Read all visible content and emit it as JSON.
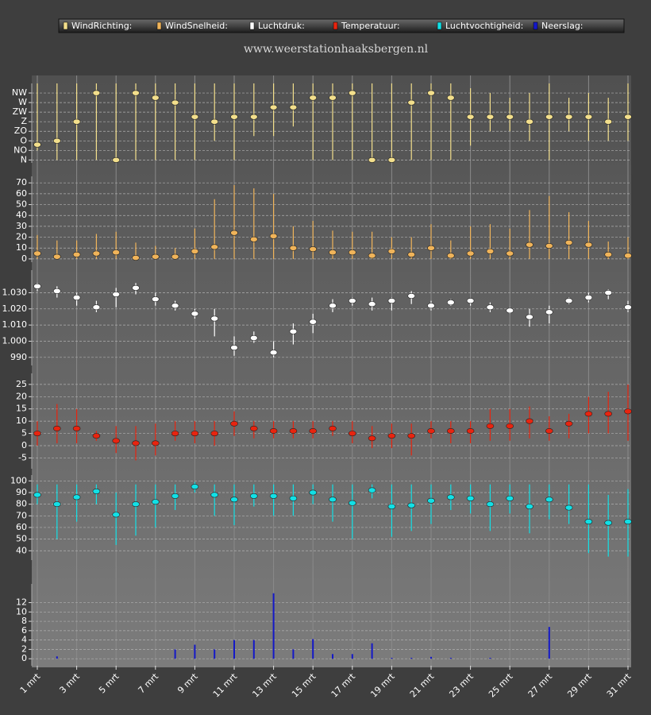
{
  "title": "www.weerstationhaaksbergen.nl",
  "chart_data": [
    {
      "type": "errorbar",
      "ylim": [
        -0.3,
        8
      ],
      "yticks": [
        {
          "value": 0,
          "label": "N"
        },
        {
          "value": 1,
          "label": "NO"
        },
        {
          "value": 2,
          "label": "O"
        },
        {
          "value": 3,
          "label": "ZO"
        },
        {
          "value": 4,
          "label": "Z"
        },
        {
          "value": 5,
          "label": "ZW"
        },
        {
          "value": 6,
          "label": "W"
        },
        {
          "value": 7,
          "label": "NW"
        }
      ],
      "series": [
        {
          "name": "WindRichting:",
          "color": "#f3df8c",
          "values": [
            1.6,
            2,
            4,
            7,
            0,
            7,
            6.5,
            6,
            4.5,
            4,
            4.5,
            4.5,
            5.5,
            5.5,
            6.5,
            6.5,
            7,
            0,
            0,
            6,
            7,
            6.5,
            4.5,
            4.5,
            4.5,
            4,
            4.5,
            4.5,
            4.5,
            4,
            4.5
          ],
          "low": [
            1,
            0,
            0,
            0,
            0,
            0,
            0,
            0,
            0,
            2,
            0,
            2.5,
            2.5,
            3.5,
            0,
            0,
            0,
            0,
            0,
            0,
            0,
            0,
            1.5,
            3,
            3,
            2,
            0,
            3,
            2,
            2,
            2
          ],
          "high": [
            8,
            8,
            8,
            8,
            8,
            8,
            8,
            8,
            8,
            8,
            8,
            8,
            8,
            8,
            8,
            8,
            8,
            8,
            8,
            8,
            8,
            8,
            7.5,
            7,
            6.5,
            7,
            8,
            6.5,
            7,
            6.5,
            8
          ]
        }
      ]
    },
    {
      "type": "errorbar",
      "ylim": [
        -3,
        76
      ],
      "yticks": [
        0,
        10,
        20,
        30,
        40,
        50,
        60,
        70
      ],
      "series": [
        {
          "name": "WindSnelheid:",
          "color": "#f0b45a",
          "values": [
            5,
            2,
            4,
            5,
            6,
            1,
            2,
            2,
            7,
            11,
            24,
            18,
            21,
            10,
            9,
            6,
            6,
            3,
            7,
            4,
            10,
            3,
            5,
            7,
            5,
            13,
            12,
            15,
            13,
            4,
            3
          ],
          "low": [
            0,
            0,
            0,
            0,
            0,
            0,
            0,
            0,
            0,
            0,
            0,
            0,
            0,
            0,
            0,
            0,
            0,
            0,
            0,
            0,
            0,
            0,
            0,
            0,
            0,
            0,
            0,
            0,
            0,
            0,
            0
          ],
          "high": [
            22,
            17,
            17,
            23,
            25,
            15,
            12,
            10,
            28,
            55,
            68,
            65,
            60,
            30,
            35,
            26,
            25,
            25,
            20,
            20,
            32,
            17,
            30,
            32,
            28,
            45,
            58,
            43,
            35,
            16,
            20
          ]
        }
      ]
    },
    {
      "type": "errorbar",
      "ylim": [
        985,
        1044
      ],
      "yticks": [
        990,
        {
          "value": 1000,
          "label": "1.000"
        },
        {
          "value": 1010,
          "label": "1.010"
        },
        {
          "value": 1020,
          "label": "1.020"
        },
        {
          "value": 1030,
          "label": "1.030"
        }
      ],
      "series": [
        {
          "name": "Luchtdruk:",
          "color": "#ffffff",
          "values": [
            1034,
            1031,
            1027,
            1021,
            1029,
            1033,
            1026,
            1022,
            1017,
            1014,
            996,
            1002,
            993,
            1006,
            1012,
            1022,
            1025,
            1023,
            1025,
            1028,
            1022,
            1024,
            1025,
            1021,
            1019,
            1015,
            1018,
            1025,
            1027,
            1030,
            1021
          ],
          "low": [
            1031,
            1027,
            1022,
            1018,
            1021,
            1029,
            1022,
            1019,
            1014,
            1003,
            991,
            999,
            990,
            998,
            1005,
            1018,
            1022,
            1019,
            1019,
            1023,
            1019,
            1022,
            1022,
            1018,
            1017,
            1009,
            1011,
            1023,
            1024,
            1026,
            1018
          ],
          "high": [
            1036,
            1034,
            1030,
            1025,
            1033,
            1036,
            1030,
            1025,
            1020,
            1020,
            1003,
            1006,
            1000,
            1011,
            1017,
            1026,
            1027,
            1027,
            1027,
            1031,
            1025,
            1026,
            1026,
            1024,
            1021,
            1020,
            1022,
            1027,
            1030,
            1032,
            1025
          ]
        }
      ]
    },
    {
      "type": "errorbar",
      "ylim": [
        -9.4,
        29.5
      ],
      "yticks": [
        -5,
        0,
        5,
        10,
        15,
        20,
        25
      ],
      "series": [
        {
          "name": "Temperatuur:",
          "color": "#e8240f",
          "values": [
            5,
            7,
            7,
            4,
            2,
            1,
            1,
            5,
            5,
            5,
            9,
            7,
            6,
            6,
            6,
            7,
            5,
            3,
            4,
            4,
            6,
            6,
            6,
            8,
            8,
            10,
            6,
            9,
            13,
            13,
            14
          ],
          "low": [
            0,
            1,
            1,
            2,
            -3,
            -6,
            -4,
            2,
            1,
            0,
            4,
            3,
            3,
            3,
            3,
            4,
            1,
            -1,
            -1,
            -4,
            3,
            1,
            1,
            2,
            2,
            3,
            2,
            3,
            5,
            5,
            2
          ],
          "high": [
            10,
            17,
            15,
            6,
            8,
            8,
            9,
            10,
            10,
            10,
            14,
            10,
            10,
            10,
            10,
            10,
            10,
            8,
            9,
            9,
            10,
            10,
            10,
            15,
            15,
            16,
            12,
            13,
            20,
            22,
            25
          ]
        }
      ]
    },
    {
      "type": "errorbar",
      "ylim": [
        32,
        105
      ],
      "yticks": [
        40,
        50,
        60,
        70,
        80,
        90,
        100
      ],
      "series": [
        {
          "name": "Luchtvochtigheid:",
          "color": "#12e0e6",
          "values": [
            88,
            80,
            86,
            91,
            71,
            80,
            82,
            87,
            95,
            88,
            84,
            87,
            87,
            85,
            90,
            84,
            81,
            92,
            78,
            79,
            83,
            86,
            85,
            80,
            85,
            78,
            84,
            77,
            65,
            64,
            65
          ],
          "low": [
            80,
            50,
            65,
            80,
            45,
            53,
            60,
            75,
            90,
            70,
            62,
            78,
            70,
            70,
            80,
            65,
            50,
            85,
            52,
            57,
            63,
            75,
            72,
            57,
            72,
            55,
            67,
            63,
            38,
            35,
            35
          ],
          "high": [
            97,
            97,
            97,
            97,
            90,
            97,
            97,
            97,
            99,
            97,
            97,
            97,
            97,
            97,
            97,
            97,
            97,
            97,
            97,
            97,
            97,
            97,
            97,
            97,
            97,
            97,
            97,
            97,
            97,
            88,
            93
          ]
        }
      ]
    },
    {
      "type": "bar",
      "ylim": [
        -1.5,
        16
      ],
      "yticks": [
        0,
        2,
        4,
        6,
        8,
        10,
        12
      ],
      "categories": [
        "1 mrt",
        null,
        "3 mrt",
        null,
        "5 mrt",
        null,
        "7 mrt",
        null,
        "9 mrt",
        null,
        "11 mrt",
        null,
        "13 mrt",
        null,
        "15 mrt",
        null,
        "17 mrt",
        null,
        "19 mrt",
        null,
        "21 mrt",
        null,
        "23 mrt",
        null,
        "25 mrt",
        null,
        "27 mrt",
        null,
        "29 mrt",
        null,
        "31 mrt"
      ],
      "series": [
        {
          "name": "Neerslag:",
          "color": "#1418c8",
          "values": [
            0,
            0.5,
            0,
            0,
            0,
            0,
            0,
            2,
            3,
            2,
            4,
            4,
            14,
            2,
            4.2,
            1,
            1,
            3.3,
            0.2,
            0.2,
            0.4,
            0.2,
            0,
            0.2,
            0,
            0,
            6.8,
            0,
            0,
            0,
            0
          ]
        }
      ]
    }
  ]
}
